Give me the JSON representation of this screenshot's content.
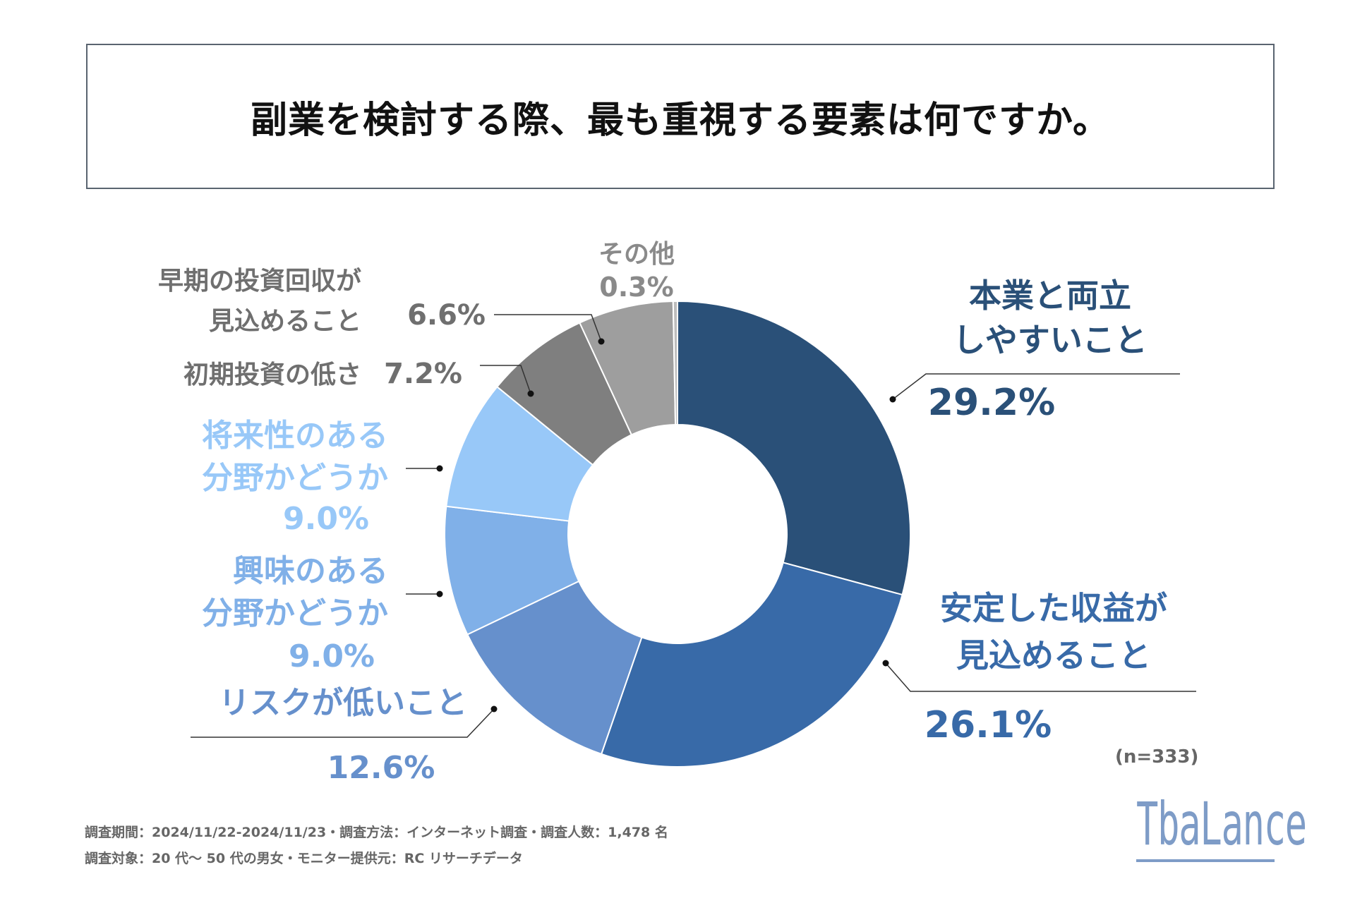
{
  "title": "副業を検討する際、最も重視する要素は何ですか。",
  "chart_data": {
    "type": "pie",
    "donut": true,
    "title": "副業を検討する際、最も重視する要素は何ですか。",
    "n_label": "(n=333)",
    "unit": "%",
    "slices": [
      {
        "label_lines": [
          "本業と両立",
          "しやすいこと"
        ],
        "value": 29.2,
        "value_label": "29.2%",
        "color": "#2a5078",
        "label_color": "#2a5078"
      },
      {
        "label_lines": [
          "安定した収益が",
          "見込めること"
        ],
        "value": 26.1,
        "value_label": "26.1%",
        "color": "#386aa8",
        "label_color": "#386aa8"
      },
      {
        "label_lines": [
          "リスクが低いこと"
        ],
        "value": 12.6,
        "value_label": "12.6%",
        "color": "#6690cc",
        "label_color": "#6690cc"
      },
      {
        "label_lines": [
          "興味のある",
          "分野かどうか"
        ],
        "value": 9.0,
        "value_label": "9.0%",
        "color": "#80b0e8",
        "label_color": "#80b0e8"
      },
      {
        "label_lines": [
          "将来性のある",
          "分野かどうか"
        ],
        "value": 9.0,
        "value_label": "9.0%",
        "color": "#98c8f8",
        "label_color": "#98c8f8"
      },
      {
        "label_lines": [
          "初期投資の低さ"
        ],
        "value": 7.2,
        "value_label": "7.2%",
        "color": "#7f7f7f",
        "label_color": "#6f6f6f"
      },
      {
        "label_lines": [
          "早期の投資回収が",
          "見込めること"
        ],
        "value": 6.6,
        "value_label": "6.6%",
        "color": "#9e9e9e",
        "label_color": "#6f6f6f"
      },
      {
        "label_lines": [
          "その他"
        ],
        "value": 0.3,
        "value_label": "0.3%",
        "color": "#bdbdbd",
        "label_color": "#8a8a8a"
      }
    ]
  },
  "footer": {
    "line1": "調査期間：2024/11/22-2024/11/23・調査方法：インターネット調査・調査人数：1,478 名",
    "line2": "調査対象：20 代～ 50 代の男女・モニター提供元：RC リサーチデータ"
  },
  "logo": {
    "text": "TbaLance"
  }
}
